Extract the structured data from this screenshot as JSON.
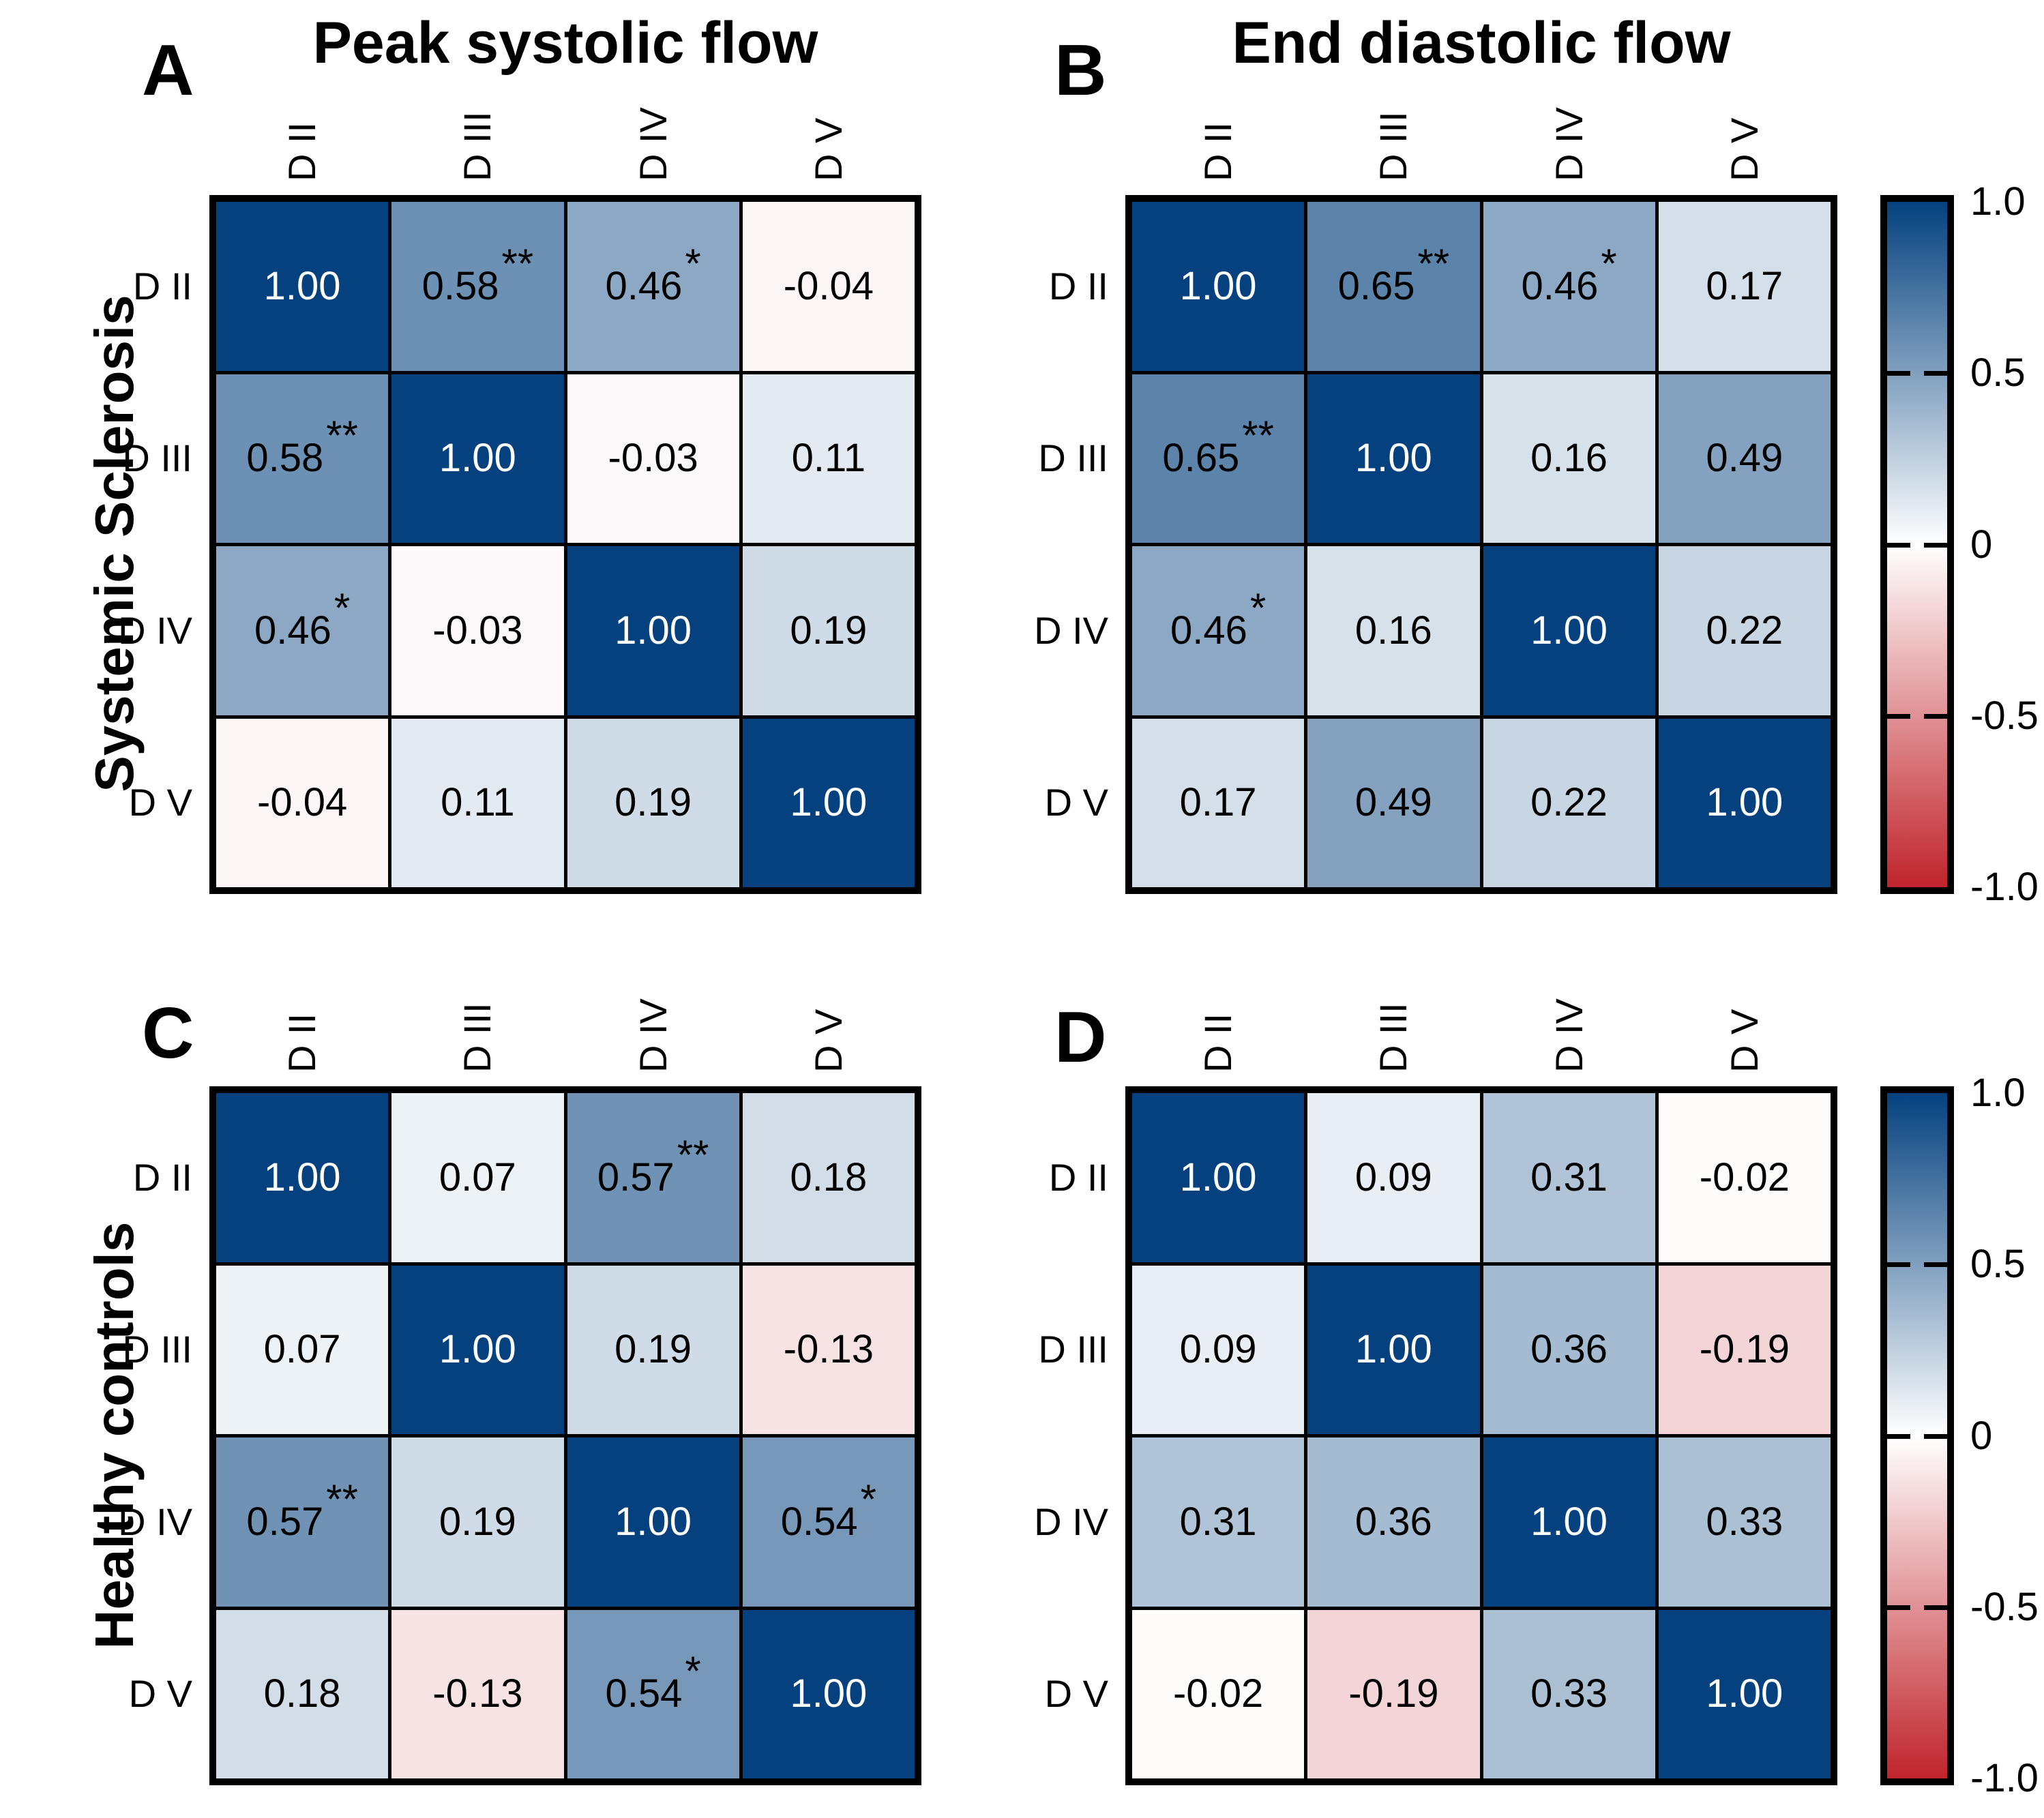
{
  "colors": {
    "positive_max": "#04417e",
    "negative_min": "#c0242c",
    "zero": "#ffffff",
    "border": "#000000",
    "value_on_dark": "#ffffff",
    "value_text": "#000000"
  },
  "colorbar": {
    "tick_labels": [
      "1.0",
      "0.5",
      "0",
      "-0.5",
      "-1.0"
    ],
    "range_max": 1.0,
    "range_min": -1.0
  },
  "chart_data": [
    {
      "type": "heatmap",
      "panel": "A",
      "title": "Peak systolic flow",
      "group": "Systemic Sclerosis",
      "x_labels": [
        "D II",
        "D III",
        "D IV",
        "D V"
      ],
      "y_labels": [
        "D II",
        "D III",
        "D IV",
        "D V"
      ],
      "values": [
        [
          1.0,
          0.58,
          0.46,
          -0.04
        ],
        [
          0.58,
          1.0,
          -0.03,
          0.11
        ],
        [
          0.46,
          -0.03,
          1.0,
          0.19
        ],
        [
          -0.04,
          0.11,
          0.19,
          1.0
        ]
      ],
      "significance": [
        [
          "",
          "**",
          "*",
          ""
        ],
        [
          "**",
          "",
          "",
          ""
        ],
        [
          "*",
          "",
          "",
          ""
        ],
        [
          "",
          "",
          "",
          ""
        ]
      ],
      "value_format": "0.00",
      "vmin": -1,
      "vmax": 1
    },
    {
      "type": "heatmap",
      "panel": "B",
      "title": "End diastolic flow",
      "group": "Systemic Sclerosis",
      "x_labels": [
        "D II",
        "D III",
        "D IV",
        "D V"
      ],
      "y_labels": [
        "D II",
        "D III",
        "D IV",
        "D V"
      ],
      "values": [
        [
          1.0,
          0.65,
          0.46,
          0.17
        ],
        [
          0.65,
          1.0,
          0.16,
          0.49
        ],
        [
          0.46,
          0.16,
          1.0,
          0.22
        ],
        [
          0.17,
          0.49,
          0.22,
          1.0
        ]
      ],
      "significance": [
        [
          "",
          "**",
          "*",
          ""
        ],
        [
          "**",
          "",
          "",
          ""
        ],
        [
          "*",
          "",
          "",
          ""
        ],
        [
          "",
          "",
          "",
          ""
        ]
      ],
      "value_format": "0.00",
      "vmin": -1,
      "vmax": 1
    },
    {
      "type": "heatmap",
      "panel": "C",
      "title": "",
      "group": "Healthy controls",
      "x_labels": [
        "D II",
        "D III",
        "D IV",
        "D V"
      ],
      "y_labels": [
        "D II",
        "D III",
        "D IV",
        "D V"
      ],
      "values": [
        [
          1.0,
          0.07,
          0.57,
          0.18
        ],
        [
          0.07,
          1.0,
          0.19,
          -0.13
        ],
        [
          0.57,
          0.19,
          1.0,
          0.54
        ],
        [
          0.18,
          -0.13,
          0.54,
          1.0
        ]
      ],
      "significance": [
        [
          "",
          "",
          "**",
          ""
        ],
        [
          "",
          "",
          "",
          ""
        ],
        [
          "**",
          "",
          "",
          "*"
        ],
        [
          "",
          "",
          "*",
          ""
        ]
      ],
      "value_format": "0.00",
      "vmin": -1,
      "vmax": 1
    },
    {
      "type": "heatmap",
      "panel": "D",
      "title": "",
      "group": "Healthy controls",
      "x_labels": [
        "D II",
        "D III",
        "D IV",
        "D V"
      ],
      "y_labels": [
        "D II",
        "D III",
        "D IV",
        "D V"
      ],
      "values": [
        [
          1.0,
          0.09,
          0.31,
          -0.02
        ],
        [
          0.09,
          1.0,
          0.36,
          -0.19
        ],
        [
          0.31,
          0.36,
          1.0,
          0.33
        ],
        [
          -0.02,
          -0.19,
          0.33,
          1.0
        ]
      ],
      "significance": [
        [
          "",
          "",
          "",
          ""
        ],
        [
          "",
          "",
          "",
          ""
        ],
        [
          "",
          "",
          "",
          ""
        ],
        [
          "",
          "",
          "",
          ""
        ]
      ],
      "value_format": "0.00",
      "vmin": -1,
      "vmax": 1
    }
  ]
}
